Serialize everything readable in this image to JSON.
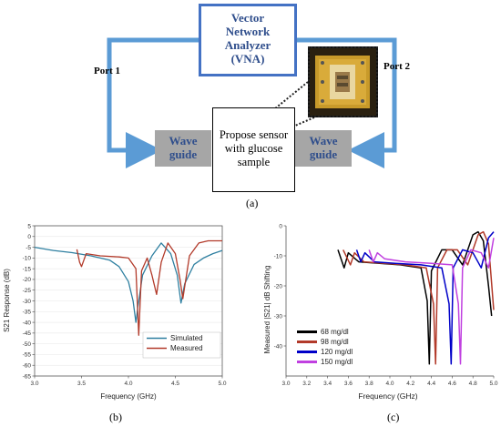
{
  "diagram": {
    "vna_label": "Vector Network Analyzer (VNA)",
    "vna_lines": [
      "Vector",
      "Network",
      "Analyzer",
      "(VNA)"
    ],
    "port1": "Port 1",
    "port2": "Port 2",
    "waveguide_left": [
      "Wave",
      "guide"
    ],
    "waveguide_right": [
      "Wave",
      "guide"
    ],
    "sensor_lines": [
      "Propose sensor",
      "with glucose",
      "sample"
    ],
    "line_color": "#5b9bd5",
    "box_color": "#4472c4",
    "panel_label": "(a)"
  },
  "panel_b_label": "(b)",
  "panel_c_label": "(c)",
  "chart_data": [
    {
      "type": "line",
      "panel": "(b)",
      "xlabel": "Frequency (GHz)",
      "ylabel": "S21 Response (dB)",
      "xlim": [
        3.0,
        5.0
      ],
      "ylim": [
        -65,
        5
      ],
      "xticks": [
        "3.0",
        "3.5",
        "4.0",
        "4.5",
        "5.0"
      ],
      "yticks": [
        "5",
        "0",
        "-5",
        "-10",
        "-15",
        "-20",
        "-25",
        "-30",
        "-35",
        "-40",
        "-45",
        "-50",
        "-55",
        "-60",
        "-65"
      ],
      "legend": "bottom-right",
      "series": [
        {
          "name": "Simulated",
          "color": "#2e7fa0",
          "x": [
            3.0,
            3.2,
            3.4,
            3.6,
            3.8,
            3.9,
            4.0,
            4.05,
            4.08,
            4.1,
            4.15,
            4.25,
            4.35,
            4.45,
            4.52,
            4.56,
            4.6,
            4.7,
            4.8,
            4.9,
            5.0
          ],
          "y": [
            -5,
            -6.5,
            -7.5,
            -9,
            -11,
            -14,
            -21,
            -30,
            -40,
            -33,
            -18,
            -9,
            -3,
            -8,
            -18,
            -31,
            -22,
            -13,
            -10,
            -8,
            -6.5
          ]
        },
        {
          "name": "Measured",
          "color": "#b23a2a",
          "x": [
            3.45,
            3.48,
            3.5,
            3.55,
            3.7,
            3.9,
            4.0,
            4.08,
            4.11,
            4.14,
            4.2,
            4.25,
            4.3,
            4.35,
            4.42,
            4.5,
            4.55,
            4.58,
            4.65,
            4.75,
            4.85,
            5.0
          ],
          "y": [
            -6,
            -12,
            -14,
            -8,
            -9,
            -9.5,
            -10,
            -15,
            -46,
            -16,
            -10,
            -18,
            -27,
            -12,
            -3,
            -8,
            -20,
            -29,
            -9,
            -3,
            -2,
            -2
          ]
        }
      ]
    },
    {
      "type": "line",
      "panel": "(c)",
      "xlabel": "Frequency (GHz)",
      "ylabel": "Measured |S21| dB Shifting",
      "xlim": [
        3.0,
        5.0
      ],
      "ylim": [
        -50,
        0
      ],
      "xticks": [
        "3.0",
        "3.2",
        "3.4",
        "3.6",
        "3.8",
        "4.0",
        "4.2",
        "4.4",
        "4.6",
        "4.8",
        "5.0"
      ],
      "yticks": [
        "0",
        "-10",
        "-20",
        "-30",
        "-40"
      ],
      "legend": "bottom-left",
      "series": [
        {
          "name": "68 mg/dl",
          "color": "#000000",
          "x": [
            3.5,
            3.56,
            3.6,
            3.7,
            3.9,
            4.1,
            4.3,
            4.36,
            4.38,
            4.4,
            4.5,
            4.6,
            4.7,
            4.8,
            4.85,
            4.9,
            4.95,
            4.98
          ],
          "y": [
            -8,
            -14,
            -9,
            -12,
            -12.5,
            -13,
            -14,
            -25,
            -46,
            -15,
            -8,
            -8,
            -13,
            -3,
            -2,
            -5,
            -20,
            -30
          ]
        },
        {
          "name": "98 mg/dl",
          "color": "#b23a2a",
          "x": [
            3.55,
            3.62,
            3.66,
            3.75,
            3.95,
            4.15,
            4.35,
            4.42,
            4.44,
            4.46,
            4.55,
            4.65,
            4.75,
            4.85,
            4.9,
            4.95,
            5.0
          ],
          "y": [
            -8,
            -13,
            -9,
            -12,
            -12.5,
            -13,
            -14,
            -26,
            -46,
            -14,
            -8,
            -8,
            -13,
            -3,
            -2,
            -6,
            -28
          ]
        },
        {
          "name": "120 mg/dl",
          "color": "#0000c8",
          "x": [
            3.68,
            3.72,
            3.76,
            3.85,
            4.05,
            4.3,
            4.5,
            4.57,
            4.59,
            4.61,
            4.7,
            4.8,
            4.88,
            4.95,
            5.0
          ],
          "y": [
            -8,
            -12,
            -9,
            -12,
            -12.5,
            -13,
            -14,
            -26,
            -46,
            -14,
            -8,
            -9,
            -14,
            -4,
            -2
          ]
        },
        {
          "name": "150 mg/dl",
          "color": "#c040e0",
          "x": [
            3.8,
            3.84,
            3.88,
            3.95,
            4.15,
            4.4,
            4.6,
            4.66,
            4.68,
            4.7,
            4.78,
            4.88,
            4.95,
            5.0
          ],
          "y": [
            -8,
            -12,
            -9,
            -11,
            -12,
            -12.5,
            -13,
            -26,
            -46,
            -14,
            -8,
            -9,
            -14,
            -4
          ]
        }
      ]
    }
  ]
}
